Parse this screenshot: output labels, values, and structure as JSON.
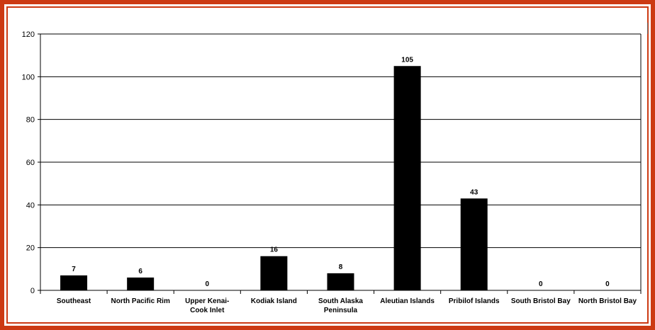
{
  "chart_data": {
    "type": "bar",
    "title": "",
    "xlabel": "",
    "ylabel": "",
    "ylim": [
      0,
      120
    ],
    "yticks": [
      0,
      20,
      40,
      60,
      80,
      100,
      120
    ],
    "grid": true,
    "legend": "none",
    "categories": [
      [
        "Southeast"
      ],
      [
        "North Pacific Rim"
      ],
      [
        "Upper Kenai-",
        "Cook Inlet"
      ],
      [
        "Kodiak Island"
      ],
      [
        "South Alaska",
        "Peninsula"
      ],
      [
        "Aleutian Islands"
      ],
      [
        "Pribilof Islands"
      ],
      [
        "South Bristol Bay"
      ],
      [
        "North Bristol Bay"
      ]
    ],
    "values": [
      7,
      6,
      0,
      16,
      8,
      105,
      43,
      0,
      0
    ],
    "data_labels": [
      "7",
      "6",
      "0",
      "16",
      "8",
      "105",
      "43",
      "0",
      "0"
    ],
    "bar_color": "#000000",
    "frame_color": "#cc3a13"
  }
}
